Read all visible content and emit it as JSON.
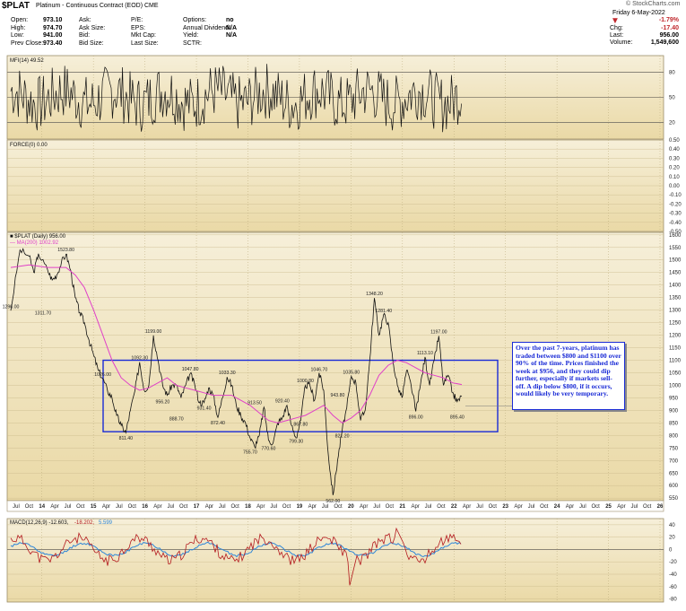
{
  "header": {
    "symbol": "$PLAT",
    "description": "Platinum - Continuous Contract (EOD) CME",
    "source": "© StockCharts.com",
    "date": "Friday  6-May-2022",
    "quote_left": [
      {
        "label": "Open:",
        "value": "973.10"
      },
      {
        "label": "High:",
        "value": "974.70"
      },
      {
        "label": "Low:",
        "value": "941.00"
      },
      {
        "label": "Prev Close:",
        "value": "973.40"
      }
    ],
    "quote_mid": [
      "Ask:",
      "Ask Size:",
      "Bid:",
      "Bid Size:"
    ],
    "quote_mid2": [
      "P/E:",
      "EPS:",
      "Mkt Cap:",
      "Last Size:"
    ],
    "quote_right_labels": [
      "Options:",
      "Annual Dividend:",
      "Yield:",
      "SCTR:"
    ],
    "quote_right_values": [
      "no",
      "N/A",
      "N/A",
      ""
    ],
    "change": {
      "pct": "-1.79%",
      "chg_label": "Chg:",
      "chg": "-17.40",
      "last_label": "Last:",
      "last": "956.00",
      "vol_label": "Volume:",
      "vol": "1,549,600"
    }
  },
  "colors": {
    "bg": "#ecdfb6",
    "price": "#111111",
    "ma": "#e040c8",
    "box": "#1a2bd6",
    "macd_red": "#b3191e",
    "macd_blue": "#2e86d8",
    "panel_line": "#9b8d68"
  },
  "chart_data": [
    {
      "type": "line",
      "panel": "MFI",
      "legend": "MFI(14) 49.52",
      "y_ticks": [
        "80",
        "50",
        "20"
      ],
      "levels": [
        80,
        50,
        20
      ],
      "ylim": [
        0,
        100
      ]
    },
    {
      "type": "line",
      "panel": "Force",
      "legend": "FORCE(0) 0.00",
      "y_ticks": [
        "0.50",
        "0.40",
        "0.30",
        "0.20",
        "0.10",
        "0.00",
        "-0.10",
        "-0.20",
        "-0.30",
        "-0.40",
        "-0.50"
      ],
      "ylim": [
        -0.5,
        0.5
      ]
    },
    {
      "type": "line",
      "panel": "Price",
      "legend_price": "$PLAT (Daily) 956.00",
      "legend_ma": "MA(200) 1002.92",
      "y_ticks": [
        "1600",
        "1550",
        "1500",
        "1450",
        "1400",
        "1350",
        "1300",
        "1250",
        "1200",
        "1150",
        "1100",
        "1050",
        "1000",
        "950",
        "900",
        "850",
        "800",
        "750",
        "700",
        "650",
        "600",
        "550"
      ],
      "ylim": [
        540,
        1610
      ],
      "series": [
        {
          "name": "$PLAT (Daily)",
          "points": [
            [
              0,
              1298
            ],
            [
              2,
              1540
            ],
            [
              4,
              1515
            ],
            [
              5,
              1450
            ],
            [
              6,
              1525
            ],
            [
              8,
              1460
            ],
            [
              9,
              1420
            ],
            [
              10,
              1440
            ],
            [
              11,
              1490
            ],
            [
              12,
              1523
            ],
            [
              13,
              1460
            ],
            [
              14,
              1350
            ],
            [
              15,
              1290
            ],
            [
              16,
              1250
            ],
            [
              17,
              1180
            ],
            [
              18,
              1120
            ],
            [
              19,
              1060
            ],
            [
              20,
              1026
            ],
            [
              21,
              980
            ],
            [
              22,
              950
            ],
            [
              23,
              880
            ],
            [
              24,
              840
            ],
            [
              25,
              811
            ],
            [
              26,
              900
            ],
            [
              27,
              980
            ],
            [
              28,
              1092
            ],
            [
              29,
              980
            ],
            [
              30,
              1000
            ],
            [
              31,
              1199
            ],
            [
              32,
              1100
            ],
            [
              33,
              1000
            ],
            [
              34,
              960
            ],
            [
              35,
              1000
            ],
            [
              36,
              1000
            ],
            [
              37,
              950
            ],
            [
              38,
              1000
            ],
            [
              39,
              1047
            ],
            [
              40,
              1000
            ],
            [
              41,
              930
            ],
            [
              42,
              931
            ],
            [
              43,
              990
            ],
            [
              44,
              960
            ],
            [
              45,
              872
            ],
            [
              46,
              950
            ],
            [
              47,
              1033
            ],
            [
              48,
              1000
            ],
            [
              49,
              920
            ],
            [
              50,
              880
            ],
            [
              51,
              850
            ],
            [
              52,
              790
            ],
            [
              53,
              755
            ],
            [
              54,
              800
            ],
            [
              55,
              913
            ],
            [
              56,
              780
            ],
            [
              57,
              770
            ],
            [
              58,
              850
            ],
            [
              59,
              870
            ],
            [
              60,
              920
            ],
            [
              61,
              840
            ],
            [
              62,
              790
            ],
            [
              63,
              860
            ],
            [
              64,
              1000
            ],
            [
              65,
              1000
            ],
            [
              66,
              940
            ],
            [
              67,
              1050
            ],
            [
              68,
              980
            ],
            [
              69,
              720
            ],
            [
              70,
              562
            ],
            [
              71,
              700
            ],
            [
              72,
              821
            ],
            [
              73,
              910
            ],
            [
              74,
              1036
            ],
            [
              75,
              1010
            ],
            [
              76,
              860
            ],
            [
              77,
              900
            ],
            [
              78,
              1100
            ],
            [
              79,
              1348
            ],
            [
              80,
              1200
            ],
            [
              81,
              1281
            ],
            [
              82,
              1250
            ],
            [
              83,
              1100
            ],
            [
              84,
              1000
            ],
            [
              85,
              950
            ],
            [
              86,
              1060
            ],
            [
              87,
              1000
            ],
            [
              88,
              896
            ],
            [
              89,
              1000
            ],
            [
              90,
              1113
            ],
            [
              91,
              1000
            ],
            [
              92,
              1100
            ],
            [
              93,
              1197
            ],
            [
              94,
              1000
            ],
            [
              95,
              1040
            ],
            [
              96,
              970
            ],
            [
              97,
              935
            ],
            [
              98,
              956
            ]
          ]
        },
        {
          "name": "MA(200)",
          "points": [
            [
              0,
              1470
            ],
            [
              4,
              1480
            ],
            [
              8,
              1470
            ],
            [
              12,
              1470
            ],
            [
              14,
              1440
            ],
            [
              16,
              1390
            ],
            [
              18,
              1300
            ],
            [
              20,
              1200
            ],
            [
              22,
              1100
            ],
            [
              24,
              1030
            ],
            [
              26,
              1000
            ],
            [
              28,
              980
            ],
            [
              30,
              990
            ],
            [
              32,
              1010
            ],
            [
              34,
              1030
            ],
            [
              36,
              1000
            ],
            [
              38,
              990
            ],
            [
              40,
              980
            ],
            [
              42,
              970
            ],
            [
              44,
              960
            ],
            [
              46,
              960
            ],
            [
              48,
              960
            ],
            [
              50,
              940
            ],
            [
              52,
              920
            ],
            [
              54,
              890
            ],
            [
              56,
              860
            ],
            [
              58,
              850
            ],
            [
              60,
              860
            ],
            [
              62,
              870
            ],
            [
              64,
              880
            ],
            [
              66,
              900
            ],
            [
              68,
              920
            ],
            [
              70,
              880
            ],
            [
              72,
              850
            ],
            [
              74,
              870
            ],
            [
              76,
              900
            ],
            [
              78,
              960
            ],
            [
              80,
              1040
            ],
            [
              82,
              1080
            ],
            [
              84,
              1100
            ],
            [
              86,
              1090
            ],
            [
              88,
              1070
            ],
            [
              90,
              1050
            ],
            [
              92,
              1040
            ],
            [
              94,
              1030
            ],
            [
              96,
              1010
            ],
            [
              98,
              1003
            ]
          ]
        }
      ],
      "annotations": [
        "1296.00",
        "1311.70",
        "1523.80",
        "1026.00",
        "811.40",
        "1092.30",
        "1199.00",
        "956.20",
        "888.70",
        "1047.80",
        "931.40",
        "872.40",
        "1033.30",
        "913.50",
        "755.70",
        "770.60",
        "920.40",
        "799.30",
        "867.80",
        "1000.80",
        "1046.70",
        "943.80",
        "562.00",
        "821.20",
        "1035.80",
        "1348.20",
        "1281.40",
        "1113.10",
        "896.00",
        "1197.00",
        "895.40"
      ],
      "range_box": [
        815,
        1100
      ]
    },
    {
      "type": "line",
      "panel": "MACD",
      "legend_macd": "MACD(12,26,9) -12.603,",
      "legend_signal": "-18.202,",
      "legend_hist": "5.599",
      "y_ticks": [
        "40",
        "20",
        "0",
        "-20",
        "-40",
        "-60",
        "-80"
      ],
      "ylim": [
        -85,
        50
      ],
      "levels": [
        0
      ]
    }
  ],
  "x_axis": {
    "labels": [
      "Jul",
      "Oct",
      "14",
      "Apr",
      "Jul",
      "Oct",
      "15",
      "Apr",
      "Jul",
      "Oct",
      "16",
      "Apr",
      "Jul",
      "Oct",
      "17",
      "Apr",
      "Jul",
      "Oct",
      "18",
      "Apr",
      "Jul",
      "Oct",
      "19",
      "Apr",
      "Jul",
      "Oct",
      "20",
      "Apr",
      "Jul",
      "Oct",
      "21",
      "Apr",
      "Jul",
      "Oct",
      "22",
      "Apr",
      "Jul",
      "Oct",
      "23",
      "Apr",
      "Jul",
      "Oct",
      "24",
      "Apr",
      "Jul",
      "Oct",
      "25",
      "Apr",
      "Jul",
      "Oct",
      "26"
    ],
    "bold": [
      "14",
      "15",
      "16",
      "17",
      "18",
      "19",
      "20",
      "21",
      "22",
      "23",
      "24",
      "25",
      "26"
    ]
  },
  "callout": "Over the past 7-years, platinum has traded between $800 and $1100 over 90% of the time. Prices finished the week at $956, and they could dip further, especially if markets sell-off. A dip below $800, if it occurs, would likely be very temporary."
}
